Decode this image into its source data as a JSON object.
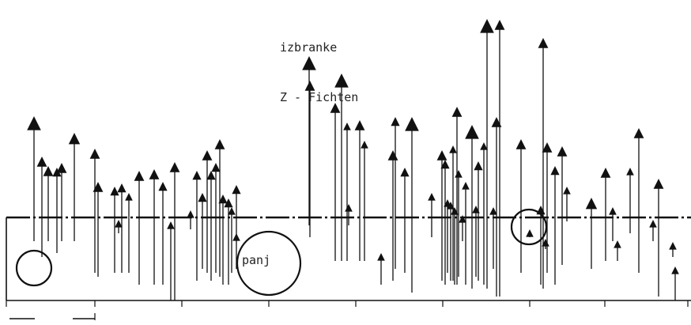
{
  "title": {
    "line1": "izbranke",
    "line2": "Z - Fichten"
  },
  "annotation": "panj",
  "colors": {
    "ink": "#111111",
    "paper": "#ffffff"
  },
  "mark_style": {
    "arrow_head": "filled-triangle",
    "stem": "thin-line"
  }
}
